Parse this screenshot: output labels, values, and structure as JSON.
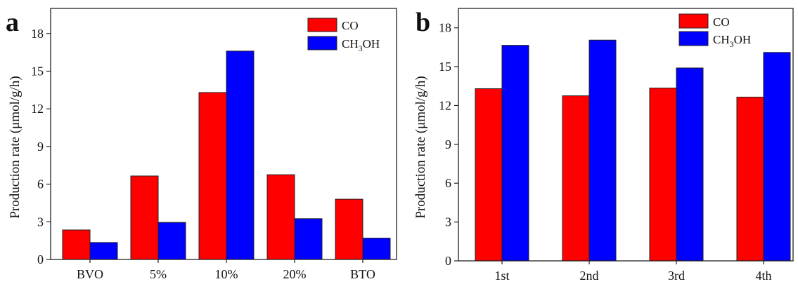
{
  "colors": {
    "co": "#ff0000",
    "ch3oh": "#0000ff",
    "axis": "#222222"
  },
  "chart_data": [
    {
      "panel_label": "a",
      "type": "bar",
      "categories": [
        "BVO",
        "5%",
        "10%",
        "20%",
        "BTO"
      ],
      "series": [
        {
          "name": "CO",
          "values": [
            2.35,
            6.65,
            13.3,
            6.75,
            4.8
          ]
        },
        {
          "name": "CH3OH",
          "values": [
            1.35,
            2.95,
            16.6,
            3.25,
            1.7
          ]
        }
      ],
      "ylabel": "Production rate (μmol/g/h)",
      "xlabel": "",
      "ylim": [
        0,
        20
      ],
      "yticks": [
        0,
        3,
        6,
        9,
        12,
        15,
        18
      ],
      "legend_position": "top-right",
      "grid": false
    },
    {
      "panel_label": "b",
      "type": "bar",
      "categories": [
        "1st",
        "2nd",
        "3rd",
        "4th"
      ],
      "series": [
        {
          "name": "CO",
          "values": [
            13.3,
            12.75,
            13.35,
            12.65
          ]
        },
        {
          "name": "CH3OH",
          "values": [
            16.65,
            17.05,
            14.9,
            16.1
          ]
        }
      ],
      "ylabel": "Production rate (μmol/g/h)",
      "xlabel": "",
      "ylim": [
        0,
        19.5
      ],
      "yticks": [
        0,
        3,
        6,
        9,
        12,
        15,
        18
      ],
      "legend_position": "top-right",
      "grid": false
    }
  ]
}
